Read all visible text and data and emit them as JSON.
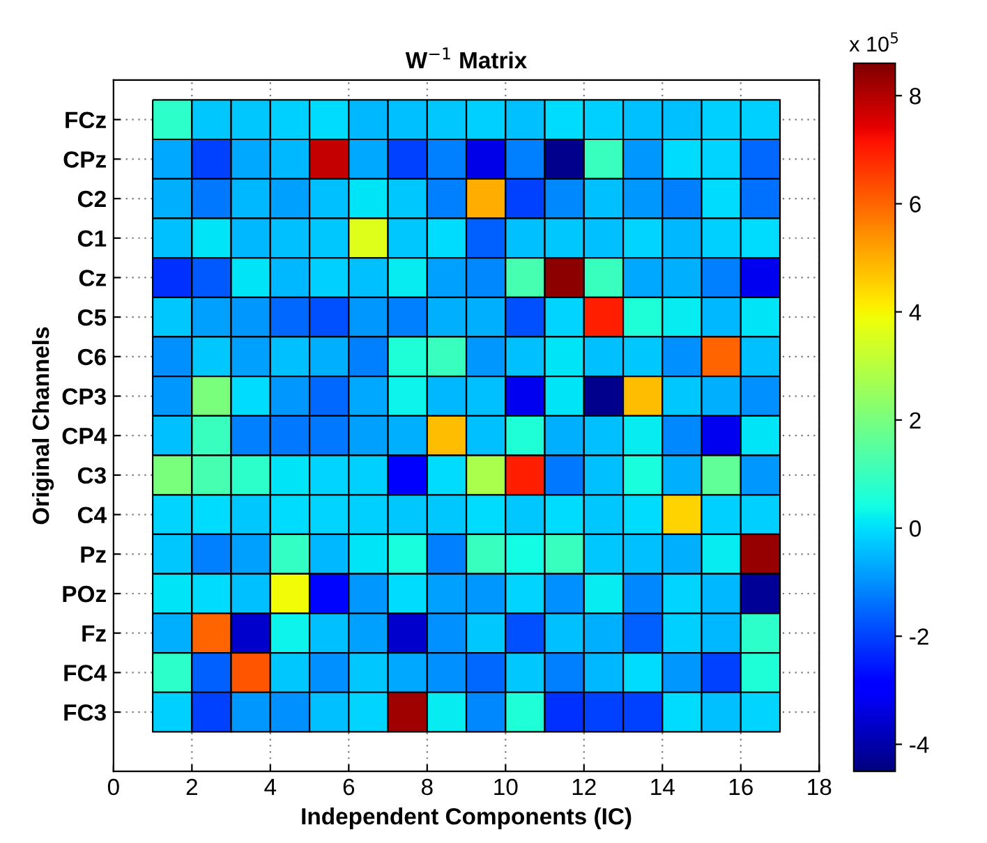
{
  "chart_data": {
    "type": "heatmap",
    "title": "W$^{−1}$ Matrix",
    "xlabel": "Independent Components (IC)",
    "ylabel": "Original Channels",
    "clabel": "x 10$^{5}$",
    "x": [
      1.5,
      2.5,
      3.5,
      4.5,
      5.5,
      6.5,
      7.5,
      8.5,
      9.5,
      10.5,
      11.5,
      12.5,
      13.5,
      14.5,
      15.5,
      16.5
    ],
    "xlim": [
      0,
      18
    ],
    "xticks": [
      0,
      2,
      4,
      6,
      8,
      10,
      12,
      14,
      16,
      18
    ],
    "y_categories": [
      "FCz",
      "CPz",
      "C2",
      "C1",
      "Cz",
      "C5",
      "C6",
      "CP3",
      "CP4",
      "C3",
      "C4",
      "Pz",
      "POz",
      "Fz",
      "FC4",
      "FC3"
    ],
    "cells": [
      [
        0.8,
        -0.3,
        -0.3,
        -0.2,
        0,
        -0.5,
        -0.4,
        -0.3,
        -0.2,
        -0.4,
        0,
        -0.2,
        -0.4,
        -0.4,
        -0.2,
        -0.2
      ],
      [
        -0.7,
        -2,
        -0.7,
        -0.5,
        7.8,
        -0.7,
        -2,
        -1.2,
        -3.3,
        -1.2,
        -4.3,
        1,
        -0.9,
        0,
        -0.1,
        -1.5
      ],
      [
        -0.6,
        -1.3,
        -0.5,
        -0.8,
        -0.4,
        0.1,
        -0.3,
        -1.2,
        5,
        -2,
        -1.1,
        -0.4,
        -0.9,
        -1.2,
        0,
        -1.4
      ],
      [
        -0.4,
        0.1,
        -0.5,
        -0.4,
        -0.3,
        3.6,
        -0.3,
        0,
        -1.6,
        -0.4,
        -0.3,
        -0.4,
        -0.1,
        -0.5,
        -0.2,
        0
      ],
      [
        -2.2,
        -1.7,
        0.1,
        -0.5,
        -0.2,
        -0.4,
        0.2,
        -0.8,
        -1.1,
        1.2,
        8.4,
        1,
        -0.7,
        -0.6,
        -1.2,
        -3.2
      ],
      [
        -0.3,
        -0.8,
        -0.9,
        -1.5,
        -1.8,
        -0.9,
        -1.2,
        -0.6,
        -0.6,
        -1.8,
        -0.1,
        7,
        0.6,
        0.2,
        -0.5,
        0.1
      ],
      [
        -1,
        -0.3,
        -0.8,
        -0.4,
        -0.6,
        -1.2,
        0.6,
        1,
        -0.9,
        -0.4,
        0.1,
        -0.4,
        -0.3,
        -1,
        6,
        -0.4
      ],
      [
        -0.9,
        2,
        0,
        -0.9,
        -1.5,
        -0.7,
        0.3,
        -0.5,
        -0.4,
        -3.2,
        0.1,
        -4.3,
        4.8,
        -0.3,
        -0.6,
        -1
      ],
      [
        -0.4,
        1,
        -1.2,
        -1.3,
        -1.3,
        -0.8,
        -0.6,
        4.8,
        -0.4,
        0.6,
        -0.6,
        -0.4,
        0.2,
        -1.1,
        -3.2,
        0.1
      ],
      [
        2,
        1.2,
        0.8,
        0.1,
        -0.1,
        -0.2,
        -3,
        0,
        2.8,
        7,
        -1.3,
        -0.4,
        0.5,
        -0.6,
        1.6,
        -0.9
      ],
      [
        -0.1,
        0,
        -0.3,
        0,
        -0.1,
        -0.2,
        -0.3,
        -0.3,
        0,
        -0.3,
        0,
        -0.3,
        0,
        4.5,
        -0.2,
        -0.2
      ],
      [
        -0.3,
        -1.2,
        -0.8,
        0.9,
        -0.5,
        0.1,
        0.5,
        -1.2,
        1,
        0.4,
        1,
        -0.3,
        -0.4,
        -0.6,
        0.2,
        8.3
      ],
      [
        0.1,
        0,
        -0.4,
        3.9,
        -2.8,
        -0.9,
        0,
        -0.8,
        -0.9,
        -0.1,
        -1,
        0.2,
        -1.1,
        -0.1,
        -0.5,
        -4.2
      ],
      [
        -0.6,
        6,
        -3.6,
        0.3,
        -0.4,
        -0.8,
        -3.6,
        -1,
        -0.3,
        -1.8,
        -0.4,
        -0.6,
        -1.6,
        -0.2,
        -0.5,
        0.8
      ],
      [
        0.8,
        -1.6,
        6.2,
        -0.3,
        -1,
        -0.3,
        -0.7,
        -1,
        -1.5,
        -0.3,
        -1.2,
        -0.5,
        0,
        -0.9,
        -2,
        0.6
      ],
      [
        -0.2,
        -2,
        -0.9,
        -1,
        -0.4,
        -0.1,
        8.2,
        0.2,
        -1.1,
        0.6,
        -2.2,
        -2,
        -2,
        0,
        -0.4,
        -0.1
      ]
    ],
    "clim": [
      -4.5,
      8.6
    ],
    "cticks": [
      -4,
      -2,
      0,
      2,
      4,
      6,
      8
    ],
    "grid": true
  }
}
